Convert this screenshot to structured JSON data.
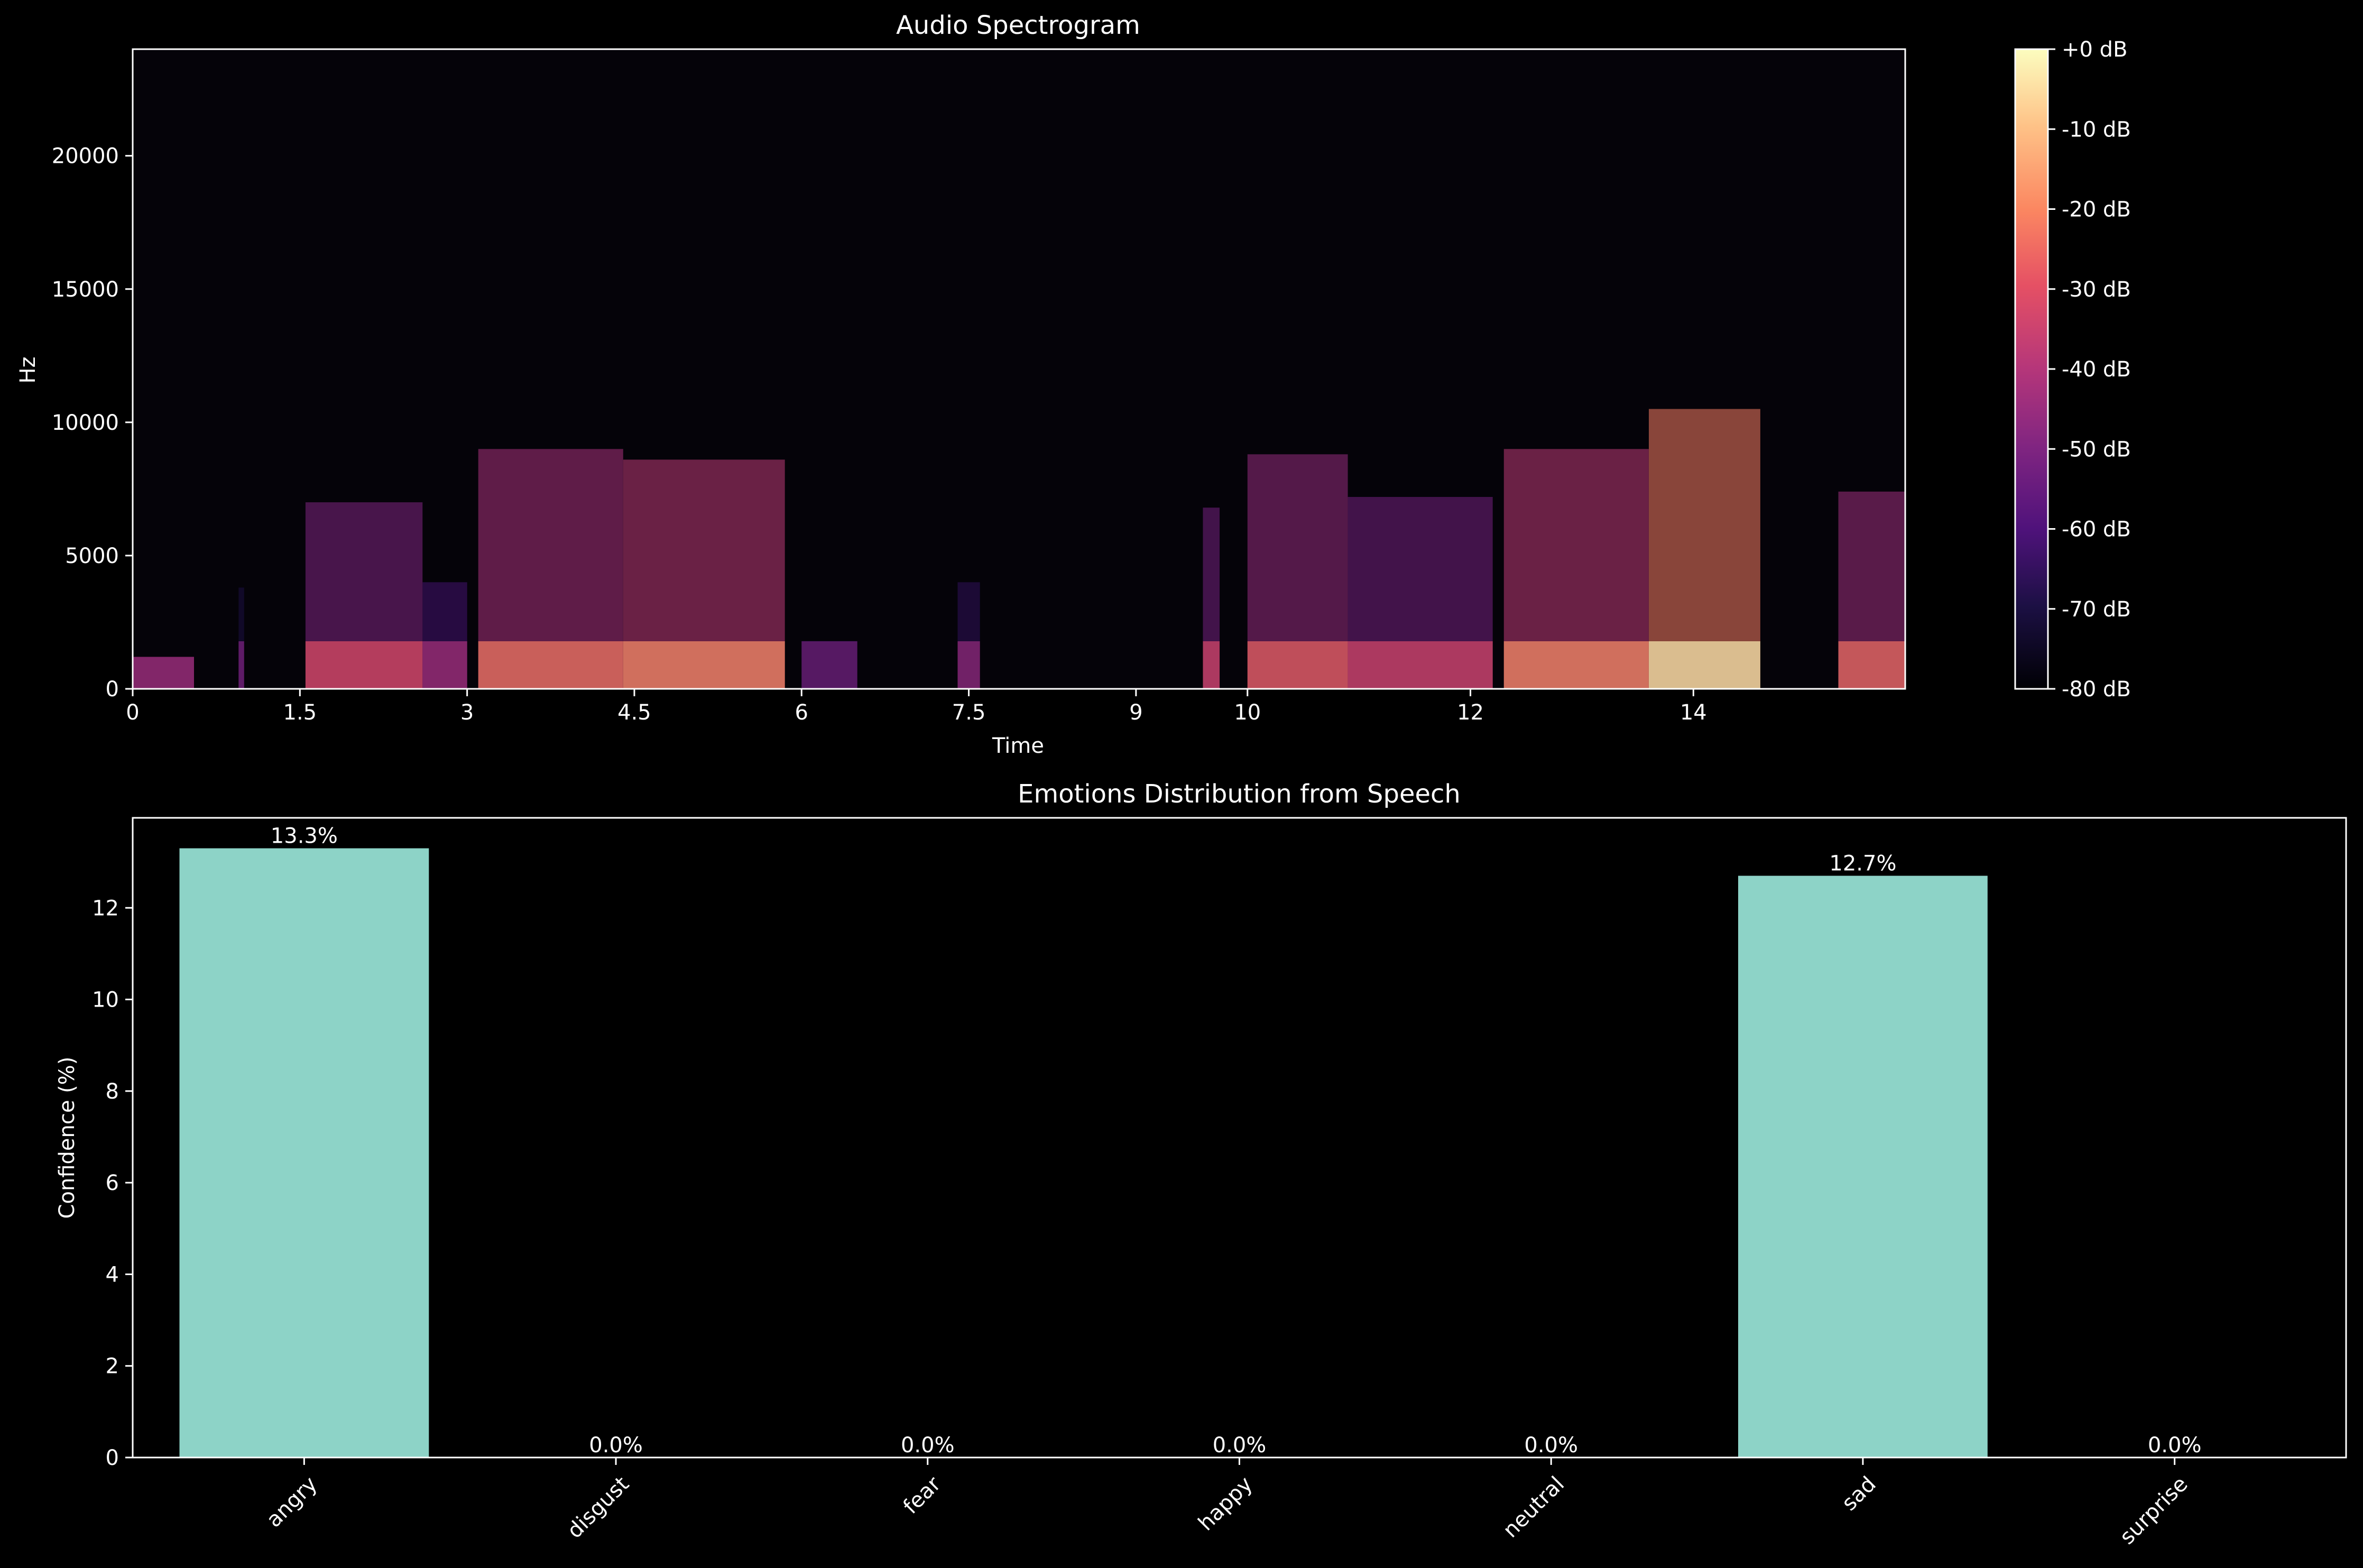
{
  "chart_data": [
    {
      "type": "heatmap",
      "title": "Audio Spectrogram",
      "xlabel": "Time",
      "ylabel": "Hz",
      "xlim": [
        0,
        15.9
      ],
      "ylim": [
        0,
        24000
      ],
      "x_ticks": [
        {
          "value": 0,
          "label": "0"
        },
        {
          "value": 1.5,
          "label": "1.5"
        },
        {
          "value": 3,
          "label": "3"
        },
        {
          "value": 4.5,
          "label": "4.5"
        },
        {
          "value": 6,
          "label": "6"
        },
        {
          "value": 7.5,
          "label": "7.5"
        },
        {
          "value": 9,
          "label": "9"
        },
        {
          "value": 10,
          "label": "10"
        },
        {
          "value": 12,
          "label": "12"
        },
        {
          "value": 14,
          "label": "14"
        }
      ],
      "y_ticks": [
        {
          "value": 0,
          "label": "0"
        },
        {
          "value": 5000,
          "label": "5000"
        },
        {
          "value": 10000,
          "label": "10000"
        },
        {
          "value": 15000,
          "label": "15000"
        },
        {
          "value": 20000,
          "label": "20000"
        }
      ],
      "colorbar": {
        "colormap": "magma",
        "range_db": [
          -80,
          0
        ],
        "ticks": [
          "+0 dB",
          "-10 dB",
          "-20 dB",
          "-30 dB",
          "-40 dB",
          "-50 dB",
          "-60 dB",
          "-70 dB",
          "-80 dB"
        ]
      },
      "energy_regions": [
        {
          "t0": 0.0,
          "t1": 0.55,
          "f_top": 1200,
          "level": -62
        },
        {
          "t0": 0.95,
          "t1": 1.0,
          "f_top": 3800,
          "level": -70
        },
        {
          "t0": 1.55,
          "t1": 2.6,
          "f_top": 7000,
          "level": -50
        },
        {
          "t0": 2.6,
          "t1": 3.0,
          "f_top": 4000,
          "level": -62
        },
        {
          "t0": 3.1,
          "t1": 4.4,
          "f_top": 9000,
          "level": -42
        },
        {
          "t0": 4.4,
          "t1": 5.85,
          "f_top": 8600,
          "level": -38
        },
        {
          "t0": 6.0,
          "t1": 6.5,
          "f_top": 1800,
          "level": -72
        },
        {
          "t0": 7.4,
          "t1": 7.6,
          "f_top": 4000,
          "level": -66
        },
        {
          "t0": 9.6,
          "t1": 9.75,
          "f_top": 6800,
          "level": -52
        },
        {
          "t0": 10.0,
          "t1": 10.9,
          "f_top": 8800,
          "level": -46
        },
        {
          "t0": 10.9,
          "t1": 12.2,
          "f_top": 7200,
          "level": -52
        },
        {
          "t0": 12.3,
          "t1": 13.6,
          "f_top": 9000,
          "level": -38
        },
        {
          "t0": 13.6,
          "t1": 14.6,
          "f_top": 10500,
          "level": -22
        },
        {
          "t0": 15.3,
          "t1": 15.9,
          "f_top": 7400,
          "level": -44
        }
      ]
    },
    {
      "type": "bar",
      "title": "Emotions Distribution from Speech",
      "xlabel": "",
      "ylabel": "Confidence (%)",
      "categories": [
        "angry",
        "disgust",
        "fear",
        "happy",
        "neutral",
        "sad",
        "surprise"
      ],
      "values": [
        13.3,
        0.0,
        0.0,
        0.0,
        0.0,
        12.7,
        0.0
      ],
      "value_labels": [
        "13.3%",
        "0.0%",
        "0.0%",
        "0.0%",
        "0.0%",
        "12.7%",
        "0.0%"
      ],
      "ylim": [
        0,
        13.965
      ],
      "y_ticks": [
        "0",
        "2",
        "4",
        "6",
        "8",
        "10",
        "12"
      ],
      "bar_color": "#8dd3c7"
    }
  ],
  "colors": {
    "background": "#000000",
    "foreground": "#ffffff",
    "bar": "#8dd3c7"
  }
}
